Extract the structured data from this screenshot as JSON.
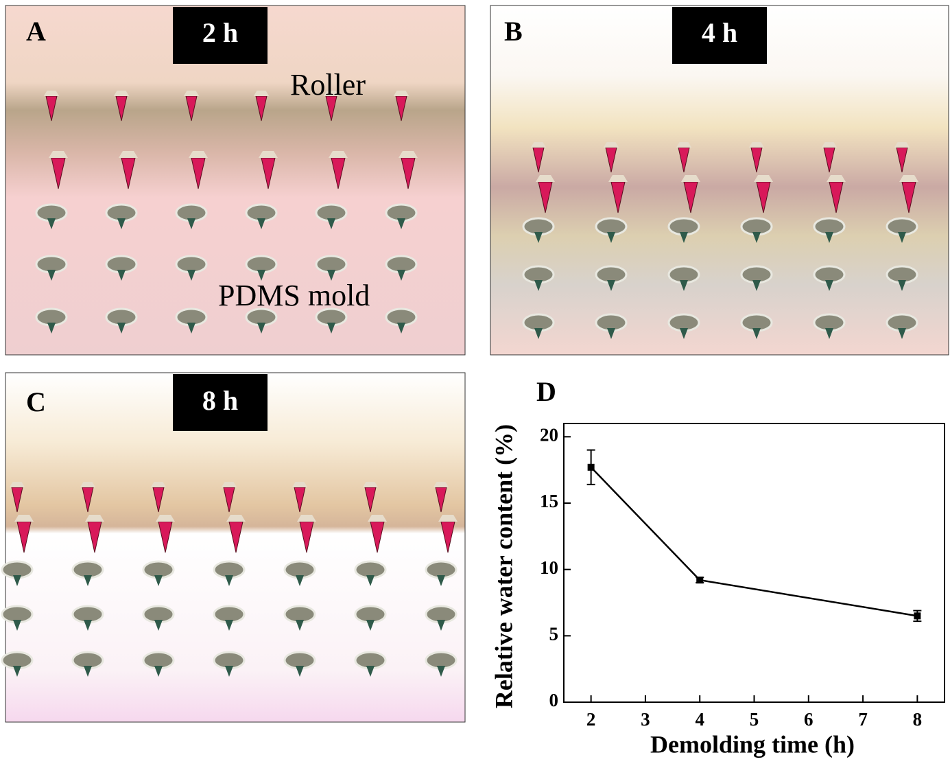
{
  "panels": [
    {
      "letter": "A",
      "time": "2 h",
      "labels": [
        "Roller",
        "PDMS mold"
      ]
    },
    {
      "letter": "B",
      "time": "4 h"
    },
    {
      "letter": "C",
      "time": "8 h"
    }
  ],
  "chart_data": {
    "type": "line",
    "letter": "D",
    "x_label": "Demolding time (h)",
    "y_label": "Relative water content (%)",
    "x": [
      2,
      4,
      8
    ],
    "values": [
      17.7,
      9.2,
      6.5
    ],
    "errors": [
      1.3,
      0.2,
      0.4
    ],
    "color": "#000000",
    "xlim": [
      1.5,
      8.5
    ],
    "ylim": [
      0,
      21
    ],
    "xticks": [
      2,
      3,
      4,
      5,
      6,
      7,
      8
    ],
    "yticks": [
      0,
      5,
      10,
      15,
      20
    ]
  }
}
